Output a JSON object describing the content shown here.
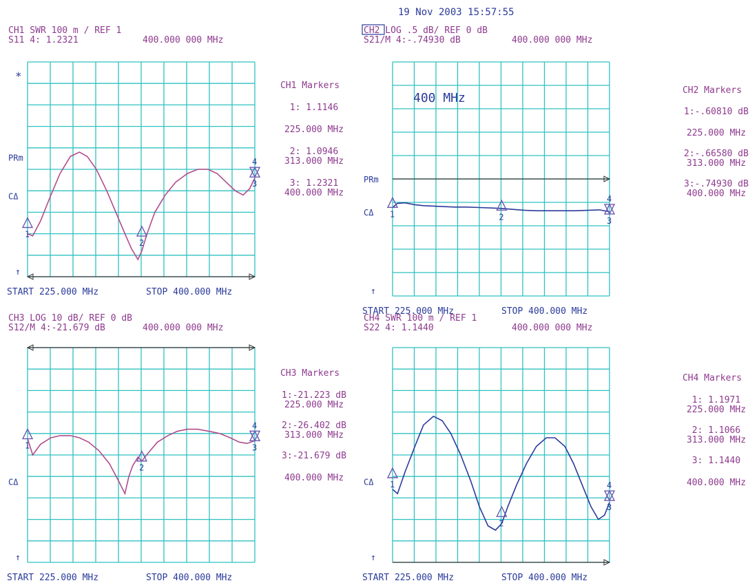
{
  "timestamp": "19 Nov 2003  15:57:55",
  "colors": {
    "grid": "#2fc1c1",
    "text_blue": "#2a3a9a",
    "text_purple": "#8e3a8e",
    "trace_purple": "#b04c8c",
    "trace_blue": "#2a3a9a",
    "reference": "#333333",
    "marker": "#6a5ab0"
  },
  "chart_data": [
    {
      "type": "line",
      "channel": "CH1",
      "channel_highlight": false,
      "header_line1": "CH1  SWR    100 m / REF 1",
      "header_line2": "S11   4: 1.2321",
      "header_freq": "400.000 000 MHz",
      "xlabel_start": "START  225.000 MHz",
      "xlabel_stop": "STOP  400.000 MHz",
      "side_labels": {
        "star": "*",
        "prm": "PRm",
        "cdelta": "CΔ",
        "arrow": "↑"
      },
      "trace_color": "purple",
      "x_range": [
        225,
        400
      ],
      "x": [
        225,
        229,
        235,
        243,
        250,
        258,
        265,
        271,
        278,
        286,
        293,
        300,
        305,
        310,
        313,
        317,
        323,
        331,
        339,
        348,
        356,
        364,
        371,
        378,
        385,
        391,
        396,
        400
      ],
      "y": [
        1.1,
        1.095,
        1.13,
        1.19,
        1.24,
        1.28,
        1.29,
        1.28,
        1.25,
        1.2,
        1.15,
        1.1,
        1.065,
        1.04,
        1.06,
        1.1,
        1.15,
        1.19,
        1.22,
        1.24,
        1.25,
        1.25,
        1.24,
        1.22,
        1.2,
        1.19,
        1.205,
        1.23
      ],
      "y_range": [
        1.0,
        1.5
      ],
      "reference_level": 1.0,
      "markers": [
        {
          "n": "1",
          "x": 225,
          "y": 1.1146,
          "dir": "up"
        },
        {
          "n": "2",
          "x": 313,
          "y": 1.0946,
          "dir": "up"
        },
        {
          "n": "3",
          "x": 400,
          "y": 1.2321,
          "dir": "up"
        },
        {
          "n": "4",
          "x": 400,
          "y": 1.2321,
          "dir": "down"
        }
      ],
      "marker_panel": {
        "title": "CH1 Markers",
        "lines": [
          "1: 1.1146",
          "225.000 MHz",
          "2: 1.0946",
          "313.000 MHz",
          "3: 1.2321",
          "400.000 MHz"
        ]
      }
    },
    {
      "type": "line",
      "channel": "CH2",
      "channel_highlight": true,
      "header_line1": "CH2  LOG     .5 dB/ REF 0 dB",
      "header_line2": "S21/M 4:-.74930 dB",
      "header_freq": "400.000 000 MHz",
      "xlabel_start": "START  225.000 MHz",
      "xlabel_stop": "STOP  400.000 MHz",
      "side_labels": {
        "star": "",
        "prm": "PRm",
        "cdelta": "CΔ",
        "arrow": "↑"
      },
      "annotation": "400 MHz",
      "trace_color": "blue",
      "x_range": [
        225,
        400
      ],
      "x": [
        225,
        229,
        235,
        243,
        250,
        258,
        265,
        275,
        285,
        295,
        305,
        313,
        322,
        332,
        342,
        352,
        362,
        372,
        382,
        392,
        400
      ],
      "y": [
        -0.61,
        -0.52,
        -0.51,
        -0.55,
        -0.57,
        -0.58,
        -0.59,
        -0.6,
        -0.6,
        -0.61,
        -0.62,
        -0.63,
        -0.65,
        -0.67,
        -0.68,
        -0.68,
        -0.68,
        -0.68,
        -0.67,
        -0.66,
        -0.7
      ],
      "y_range": [
        -2.5,
        2.5
      ],
      "reference_level": 0,
      "markers": [
        {
          "n": "1",
          "x": 225,
          "y": -0.6081,
          "dir": "up"
        },
        {
          "n": "2",
          "x": 313,
          "y": -0.6658,
          "dir": "up"
        },
        {
          "n": "3",
          "x": 400,
          "y": -0.7493,
          "dir": "up"
        },
        {
          "n": "4",
          "x": 400,
          "y": -0.7493,
          "dir": "down"
        }
      ],
      "marker_panel": {
        "title": "CH2 Markers",
        "lines": [
          "1:-.60810 dB",
          "225.000 MHz",
          "2:-.66580 dB",
          "313.000 MHz",
          "3:-.74930 dB",
          "400.000 MHz"
        ]
      }
    },
    {
      "type": "line",
      "channel": "CH3",
      "channel_highlight": false,
      "header_line1": "CH3  LOG     10 dB/ REF 0 dB",
      "header_line2": "S12/M 4:-21.679 dB",
      "header_freq": "400.000 000 MHz",
      "xlabel_start": "START  225.000 MHz",
      "xlabel_stop": "STOP  400.000 MHz",
      "side_labels": {
        "star": "",
        "prm": "",
        "cdelta": "CΔ",
        "arrow": "↑"
      },
      "trace_color": "purple",
      "x_range": [
        225,
        400
      ],
      "x": [
        225,
        229,
        235,
        243,
        250,
        258,
        265,
        272,
        280,
        288,
        295,
        300,
        303,
        306,
        310,
        313,
        318,
        325,
        333,
        340,
        348,
        356,
        365,
        373,
        381,
        388,
        394,
        400
      ],
      "y": [
        -21.2,
        -25.0,
        -22.5,
        -21.0,
        -20.5,
        -20.5,
        -21.0,
        -22.0,
        -24.0,
        -27.0,
        -31.0,
        -34.0,
        -30.0,
        -27.5,
        -25.5,
        -26.4,
        -24.5,
        -22.0,
        -20.5,
        -19.5,
        -19.0,
        -19.0,
        -19.5,
        -20.0,
        -21.0,
        -22.0,
        -22.3,
        -21.7
      ],
      "y_range": [
        -50,
        0
      ],
      "reference_level": 0,
      "markers": [
        {
          "n": "1",
          "x": 225,
          "y": -21.223,
          "dir": "up"
        },
        {
          "n": "2",
          "x": 313,
          "y": -26.402,
          "dir": "up"
        },
        {
          "n": "3",
          "x": 400,
          "y": -21.679,
          "dir": "up"
        },
        {
          "n": "4",
          "x": 400,
          "y": -21.679,
          "dir": "down"
        }
      ],
      "marker_panel": {
        "title": "CH3 Markers",
        "lines": [
          "1:-21.223 dB",
          "225.000 MHz",
          "2:-26.402 dB",
          "313.000 MHz",
          "3:-21.679 dB",
          "400.000 MHz"
        ]
      }
    },
    {
      "type": "line",
      "channel": "CH4",
      "channel_highlight": false,
      "header_line1": "CH4  SWR    100 m / REF 1",
      "header_line2": "S22   4: 1.1440",
      "header_freq": "400.000 000 MHz",
      "xlabel_start": "START  225.000 MHz",
      "xlabel_stop": "STOP  400.000 MHz",
      "side_labels": {
        "star": "",
        "prm": "",
        "cdelta": "CΔ",
        "arrow": "↑"
      },
      "trace_color": "blue",
      "x_range": [
        225,
        400
      ],
      "x": [
        225,
        229,
        235,
        243,
        250,
        258,
        265,
        272,
        280,
        288,
        295,
        302,
        308,
        313,
        318,
        325,
        333,
        341,
        349,
        356,
        364,
        371,
        378,
        385,
        391,
        396,
        400
      ],
      "y": [
        1.17,
        1.16,
        1.21,
        1.27,
        1.32,
        1.34,
        1.33,
        1.3,
        1.25,
        1.19,
        1.13,
        1.085,
        1.075,
        1.09,
        1.13,
        1.18,
        1.23,
        1.27,
        1.29,
        1.29,
        1.27,
        1.23,
        1.18,
        1.13,
        1.1,
        1.11,
        1.14
      ],
      "y_range": [
        1.0,
        1.5
      ],
      "reference_level": 1.0,
      "markers": [
        {
          "n": "1",
          "x": 225,
          "y": 1.1971,
          "dir": "up"
        },
        {
          "n": "2",
          "x": 313,
          "y": 1.1066,
          "dir": "up"
        },
        {
          "n": "3",
          "x": 400,
          "y": 1.144,
          "dir": "up"
        },
        {
          "n": "4",
          "x": 400,
          "y": 1.144,
          "dir": "down"
        }
      ],
      "marker_panel": {
        "title": "CH4 Markers",
        "lines": [
          "1: 1.1971",
          "225.000 MHz",
          "2: 1.1066",
          "313.000 MHz",
          "3: 1.1440",
          "400.000 MHz"
        ]
      }
    }
  ]
}
